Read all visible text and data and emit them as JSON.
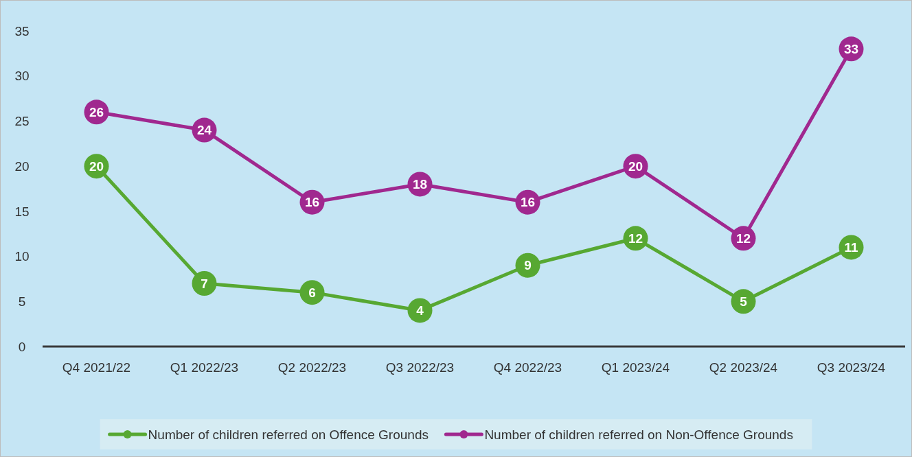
{
  "chart_data": {
    "type": "line",
    "categories": [
      "Q4 2021/22",
      "Q1 2022/23",
      "Q2 2022/23",
      "Q3 2022/23",
      "Q4 2022/23",
      "Q1 2023/24",
      "Q2 2023/24",
      "Q3 2023/24"
    ],
    "series": [
      {
        "name": "Number of children referred on Offence Grounds",
        "color": "#57a832",
        "values": [
          20,
          7,
          6,
          4,
          9,
          12,
          5,
          11
        ]
      },
      {
        "name": "Number of children referred on Non-Offence Grounds",
        "color": "#a0288f",
        "values": [
          26,
          24,
          16,
          18,
          16,
          20,
          12,
          33
        ]
      }
    ],
    "ylim": [
      0,
      35
    ],
    "yticks": [
      0,
      5,
      10,
      15,
      20,
      25,
      30,
      35
    ],
    "grid": false,
    "legend": "bottom",
    "marker": "circle",
    "line_style": "solid",
    "data_labels": true
  }
}
